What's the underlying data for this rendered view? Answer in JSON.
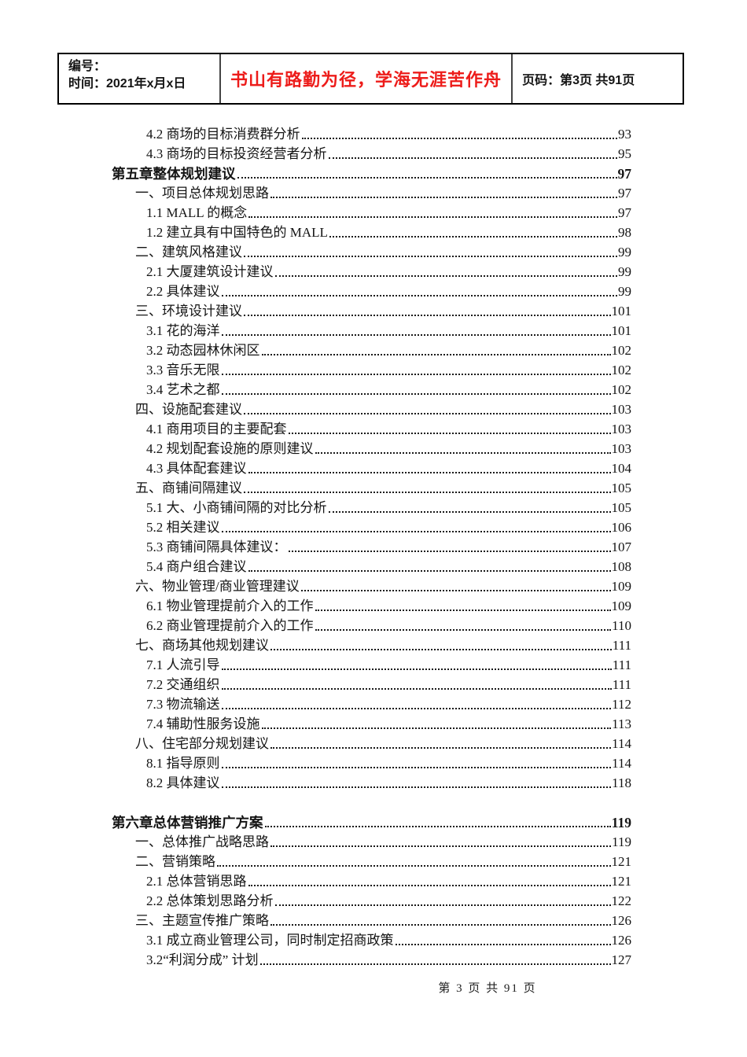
{
  "header": {
    "left": {
      "line1": "编号：",
      "line2": "时间：2021年x月x日"
    },
    "center": {
      "slogan": "书山有路勤为径，学海无涯苦作舟",
      "color": "#ed1c1a"
    },
    "right": {
      "page_info": "页码：第3页 共91页"
    }
  },
  "toc": {
    "entries": [
      {
        "level": 2,
        "title": "4.2 商场的目标消费群分析",
        "page": "93"
      },
      {
        "level": 2,
        "title": "4.3 商场的目标投资经营者分析",
        "page": "95"
      },
      {
        "level": 0,
        "title": "第五章整体规划建议",
        "page": "97",
        "bold": true
      },
      {
        "level": 1,
        "title": "一、项目总体规划思路",
        "page": "97"
      },
      {
        "level": 2,
        "title": "1.1 MALL 的概念",
        "page": "97"
      },
      {
        "level": 2,
        "title": "1.2 建立具有中国特色的 MALL",
        "page": "98"
      },
      {
        "level": 1,
        "title": "二、建筑风格建议",
        "page": "99"
      },
      {
        "level": 2,
        "title": "2.1 大厦建筑设计建议",
        "page": "99"
      },
      {
        "level": 2,
        "title": "2.2 具体建议",
        "page": "99"
      },
      {
        "level": 1,
        "title": "三、环境设计建议",
        "page": "101"
      },
      {
        "level": 2,
        "title": "3.1 花的海洋",
        "page": "101"
      },
      {
        "level": 2,
        "title": "3.2 动态园林休闲区",
        "page": "102"
      },
      {
        "level": 2,
        "title": "3.3 音乐无限",
        "page": "102"
      },
      {
        "level": 2,
        "title": "3.4 艺术之都",
        "page": "102"
      },
      {
        "level": 1,
        "title": "四、设施配套建议",
        "page": "103"
      },
      {
        "level": 2,
        "title": "4.1 商用项目的主要配套",
        "page": "103"
      },
      {
        "level": 2,
        "title": "4.2 规划配套设施的原则建议",
        "page": "103"
      },
      {
        "level": 2,
        "title": "4.3 具体配套建议",
        "page": "104"
      },
      {
        "level": 1,
        "title": "五、商铺间隔建议",
        "page": "105"
      },
      {
        "level": 2,
        "title": "5.1 大、小商铺间隔的对比分析",
        "page": "105"
      },
      {
        "level": 2,
        "title": "5.2 相关建议",
        "page": "106"
      },
      {
        "level": 2,
        "title": "5.3 商铺间隔具体建议： ",
        "page": "107"
      },
      {
        "level": 2,
        "title": "5.4 商户组合建议",
        "page": "108"
      },
      {
        "level": 1,
        "title": "六、物业管理/商业管理建议",
        "page": "109"
      },
      {
        "level": 2,
        "title": "6.1 物业管理提前介入的工作",
        "page": "109"
      },
      {
        "level": 2,
        "title": "6.2 商业管理提前介入的工作",
        "page": "110"
      },
      {
        "level": 1,
        "title": "七、商场其他规划建议",
        "page": "111"
      },
      {
        "level": 2,
        "title": "7.1 人流引导",
        "page": "111"
      },
      {
        "level": 2,
        "title": "7.2 交通组织",
        "page": "111"
      },
      {
        "level": 2,
        "title": "7.3 物流输送",
        "page": "112"
      },
      {
        "level": 2,
        "title": "7.4 辅助性服务设施",
        "page": "113"
      },
      {
        "level": 1,
        "title": "八、住宅部分规划建议",
        "page": "114"
      },
      {
        "level": 2,
        "title": "8.1 指导原则",
        "page": "114"
      },
      {
        "level": 2,
        "title": "8.2 具体建议",
        "page": "118"
      },
      {
        "level": 0,
        "title": "第六章总体营销推广方案",
        "page": "119",
        "bold": true,
        "gap_before": true
      },
      {
        "level": 1,
        "title": "一、总体推广战略思路",
        "page": "119"
      },
      {
        "level": 1,
        "title": "二、营销策略",
        "page": "121"
      },
      {
        "level": 2,
        "title": "2.1 总体营销思路",
        "page": "121"
      },
      {
        "level": 2,
        "title": "2.2 总体策划思路分析",
        "page": "122"
      },
      {
        "level": 1,
        "title": "三、主题宣传推广策略",
        "page": "126"
      },
      {
        "level": 2,
        "title": "3.1 成立商业管理公司，同时制定招商政策",
        "page": "126"
      },
      {
        "level": 2,
        "title": "3.2“利润分成” 计划",
        "page": "127"
      }
    ]
  },
  "footer": {
    "text": "第 3 页 共 91 页"
  }
}
